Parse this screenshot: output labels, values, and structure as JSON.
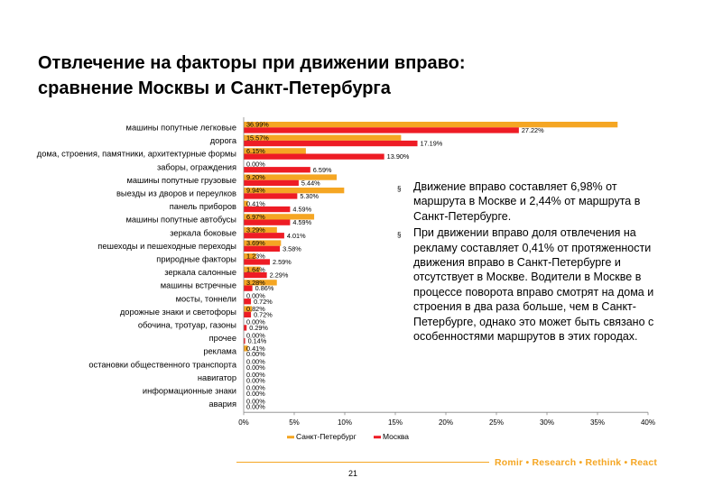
{
  "title_lines": [
    "Отвлечение на факторы при движении вправо:",
    "сравнение Москвы и Санкт-Петербурга"
  ],
  "notes": [
    "Движение вправо составляет 6,98% от маршрута в Москве и 2,44% от маршрута в Санкт-Петербурге.",
    "При движении вправо доля отвлечения на рекламу составляет 0,41% от протяженности движения вправо в Санкт-Петербурге и отсутствует в Москве. Водители в Москве в процессе поворота вправо смотрят на дома и строения в два раза больше, чем в Санкт-Петербурге, однако это может быть связано с особенностями маршрутов в этих городах."
  ],
  "bullet_glyph": "§",
  "footer": {
    "tagline": "Romir • Research • Rethink • React",
    "page_number": "21"
  },
  "colors": {
    "spb": "#f5a623",
    "moscow": "#ee1c25",
    "accent": "#f5a623"
  },
  "chart_data": {
    "type": "bar",
    "orientation": "horizontal",
    "categories": [
      "машины попутные легковые",
      "дорога",
      "дома, строения, памятники, архитектурные формы",
      "заборы, ограждения",
      "машины попутные грузовые",
      "выезды из дворов и переулков",
      "панель приборов",
      "машины попутные автобусы",
      "зеркала боковые",
      "пешеходы и пешеходные переходы",
      "природные факторы",
      "зеркала салонные",
      "машины встречные",
      "мосты, тоннели",
      "дорожные знаки и светофоры",
      "обочина, тротуар, газоны",
      "прочее",
      "реклама",
      "остановки общественного транспорта",
      "навигатор",
      "информационные знаки",
      "авария"
    ],
    "series": [
      {
        "name": "Санкт-Петербург",
        "values": [
          36.99,
          15.57,
          6.15,
          0.0,
          9.2,
          9.94,
          0.41,
          6.97,
          3.29,
          3.69,
          1.23,
          1.64,
          3.28,
          0.0,
          0.82,
          0.0,
          0.0,
          0.41,
          0.0,
          0.0,
          0.0,
          0.0
        ],
        "labels": [
          "36.99%",
          "15.57%",
          "6.15%",
          "0.00%",
          "9.20%",
          "9.94%",
          "0.41%",
          "6.97%",
          "3.29%",
          "3.69%",
          "1.23%",
          "1.64%",
          "3.28%",
          "0.00%",
          "0.82%",
          "0.00%",
          "0.00%",
          "0.41%",
          "0.00%",
          "0.00%",
          "0.00%",
          "0.00%"
        ]
      },
      {
        "name": "Москва",
        "values": [
          27.22,
          17.19,
          13.9,
          6.59,
          5.44,
          5.3,
          4.59,
          4.59,
          4.01,
          3.58,
          2.59,
          2.29,
          0.86,
          0.72,
          0.72,
          0.29,
          0.14,
          0.0,
          0.0,
          0.0,
          0.0,
          0.0
        ],
        "labels": [
          "27.22%",
          "17.19%",
          "13.90%",
          "6.59%",
          "5.44%",
          "5.30%",
          "4.59%",
          "4.59%",
          "4.01%",
          "3.58%",
          "2.59%",
          "2.29%",
          "0.86%",
          "0.72%",
          "0.72%",
          "0.29%",
          "0.14%",
          "0.00%",
          "0.00%",
          "0.00%",
          "0.00%",
          "0.00%"
        ]
      }
    ],
    "xlim": [
      0,
      40
    ],
    "xticks": [
      0,
      5,
      10,
      15,
      20,
      25,
      30,
      35,
      40
    ],
    "xtick_labels": [
      "0%",
      "5%",
      "10%",
      "15%",
      "20%",
      "25%",
      "30%",
      "35%",
      "40%"
    ],
    "legend": {
      "position": "bottom",
      "entries": [
        "Санкт-Петербург",
        "Москва"
      ]
    },
    "grid": false
  }
}
